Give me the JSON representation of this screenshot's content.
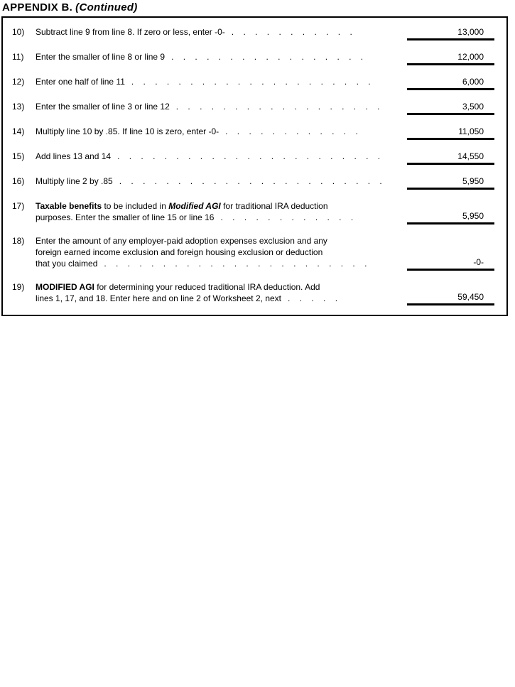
{
  "header": {
    "title": "APPENDIX B.",
    "continued": "(Continued)"
  },
  "colors": {
    "text": "#000000",
    "background": "#ffffff",
    "border": "#000000"
  },
  "worksheet": {
    "rows": [
      {
        "num": "10)",
        "segments": [
          {
            "t": "Subtract line 9 from line 8. If zero or less, enter -0-"
          }
        ],
        "dots": ". . . . . . . . . . .",
        "value": "13,000"
      },
      {
        "num": "11)",
        "segments": [
          {
            "t": "Enter the smaller of line 8 or line 9"
          }
        ],
        "dots": ". . . . . . . . . . . . . . . . .",
        "value": "12,000"
      },
      {
        "num": "12)",
        "segments": [
          {
            "t": "Enter one half of line 11"
          }
        ],
        "dots": ". . . . . . . . . . . . . . . . . . . . .",
        "value": "6,000"
      },
      {
        "num": "13)",
        "segments": [
          {
            "t": "Enter the smaller of line 3 or line 12"
          }
        ],
        "dots": ". . . . . . . . . . . . . . . . . .",
        "value": "3,500"
      },
      {
        "num": "14)",
        "segments": [
          {
            "t": "Multiply line 10 by .85. If line 10 is zero, enter -0-"
          }
        ],
        "dots": ". . . . . . . . . . . .",
        "value": "11,050"
      },
      {
        "num": "15)",
        "segments": [
          {
            "t": "Add lines 13 and 14"
          }
        ],
        "dots": ". . . . . . . . . . . . . . . . . . . . . . .",
        "value": "14,550"
      },
      {
        "num": "16)",
        "segments": [
          {
            "t": "Multiply line 2 by .85"
          }
        ],
        "dots": ". . . . . . . . . . . . . . . . . . . . . . .",
        "value": "5,950"
      },
      {
        "num": "17)",
        "segments": [
          {
            "t": "Taxable benefits",
            "style": "b"
          },
          {
            "t": " to be included in "
          },
          {
            "t": "Modified AGI",
            "style": "bi"
          },
          {
            "t": " for traditional IRA deduction"
          },
          {
            "br": true
          },
          {
            "t": "purposes. Enter the smaller of line 15 or line 16"
          }
        ],
        "dots": ". . . . . . . . . . . .",
        "value": "5,950"
      },
      {
        "num": "18)",
        "segments": [
          {
            "t": "Enter the amount of any employer-paid adoption expenses exclusion and any"
          },
          {
            "br": true
          },
          {
            "t": "foreign earned income exclusion and foreign housing exclusion or deduction"
          },
          {
            "br": true
          },
          {
            "t": "that you claimed"
          }
        ],
        "dots": ". . . . . . . . . . . . . . . . . . . . . . .",
        "value": "-0-"
      },
      {
        "num": "19)",
        "segments": [
          {
            "t": "MODIFIED AGI",
            "style": "b"
          },
          {
            "t": " for determining your reduced traditional IRA deduction. Add"
          },
          {
            "br": true
          },
          {
            "t": "lines 1, 17, and 18. Enter here and on line 2 of Worksheet 2, next"
          }
        ],
        "dots": ". . . . .",
        "value": "59,450"
      }
    ]
  }
}
